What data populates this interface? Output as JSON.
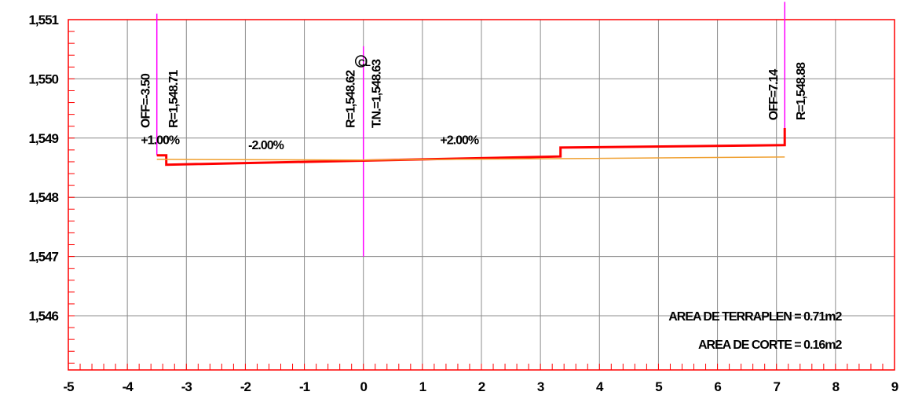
{
  "chart_data": {
    "type": "line",
    "title": "",
    "xlabel": "",
    "ylabel": "",
    "xlim": [
      -5,
      9
    ],
    "ylim": [
      1545,
      1551
    ],
    "grid": true,
    "x_ticks": [
      -5,
      -4,
      -3,
      -2,
      -1,
      0,
      1,
      2,
      3,
      4,
      5,
      6,
      7,
      8,
      9
    ],
    "x_tick_labels": [
      "-5",
      "-4",
      "-3",
      "-2",
      "-1",
      "0",
      "1",
      "2",
      "3",
      "4",
      "5",
      "6",
      "7",
      "8",
      "9"
    ],
    "y_ticks": [
      1546,
      1547,
      1548,
      1549,
      1550,
      1551
    ],
    "y_tick_labels": [
      "1,546",
      "1,547",
      "1,548",
      "1,549",
      "1,550",
      "1,551"
    ],
    "series": [
      {
        "color": "#ff0000",
        "width": 3,
        "points": [
          [
            -3.5,
            1548.71
          ],
          [
            -3.34,
            1548.71
          ],
          [
            -3.34,
            1548.55
          ],
          [
            0,
            1548.62
          ],
          [
            3.34,
            1548.69
          ],
          [
            3.34,
            1548.84
          ],
          [
            7.14,
            1548.88
          ],
          [
            7.14,
            1549.17
          ]
        ]
      },
      {
        "color": "#f0a030",
        "width": 1.5,
        "points": [
          [
            -3.5,
            1548.64
          ],
          [
            0,
            1548.63
          ],
          [
            7.14,
            1548.68
          ]
        ]
      }
    ],
    "vertical_lines": [
      {
        "x": -3.5,
        "y0": 1548.71,
        "y1": 1551.1,
        "color": "#ff00ff"
      },
      {
        "x": 0,
        "y0": 1547.0,
        "y1": 1550.55,
        "color": "#ff00ff"
      },
      {
        "x": 7.14,
        "y0": 1548.88,
        "y1": 1551.3,
        "color": "#ff00ff"
      }
    ],
    "annotations": [
      {
        "text": "OFF=-3.50",
        "x": -3.62,
        "y": 1549.17,
        "rotate": -90
      },
      {
        "text": "R=1,548.71",
        "x": -3.15,
        "y": 1549.17,
        "rotate": -90
      },
      {
        "text": "+1.00%",
        "x": -3.77,
        "y": 1548.9,
        "rotate": 0
      },
      {
        "text": "-2.00%",
        "x": -1.95,
        "y": 1548.81,
        "rotate": 0
      },
      {
        "text": "R=1,548.62",
        "x": -0.15,
        "y": 1549.17,
        "rotate": -90
      },
      {
        "text": "T.N.=1,548.63",
        "x": 0.29,
        "y": 1549.17,
        "rotate": -90
      },
      {
        "text": "+2.00%",
        "x": 1.3,
        "y": 1548.9,
        "rotate": 0
      },
      {
        "text": "OFF=7.14",
        "x": 7.02,
        "y": 1549.3,
        "rotate": -90
      },
      {
        "text": "R=1,548.88",
        "x": 7.48,
        "y": 1549.3,
        "rotate": -90
      }
    ],
    "area_labels": [
      {
        "text": "AREA DE TERRAPLEN = 0.71m2",
        "x": 8.1,
        "y": 1546.0
      },
      {
        "text": "AREA DE CORTE = 0.16m2",
        "x": 8.1,
        "y": 1545.52
      }
    ],
    "centerline_symbol": "CL",
    "colors": {
      "frame": "#ff0000",
      "grid": "#8c8c8c",
      "minor_tick": "#ff0000"
    }
  }
}
